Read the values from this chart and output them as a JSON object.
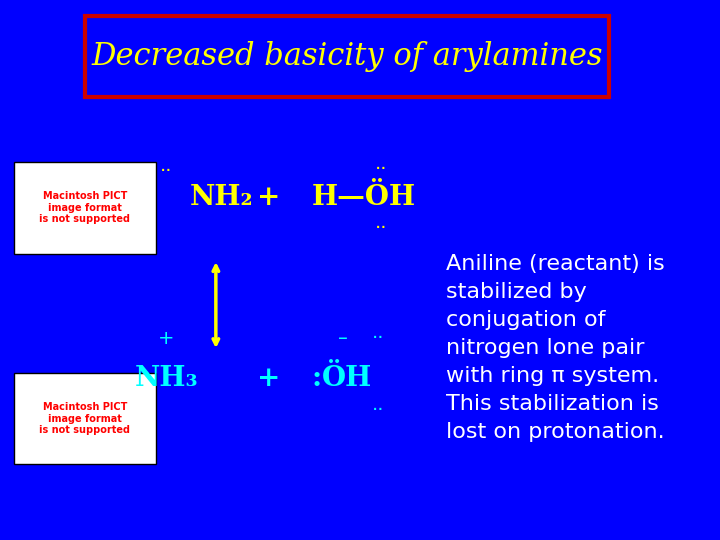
{
  "background_color": "#0000ff",
  "title_text": "Decreased basicity of arylamines",
  "title_color": "#ffff00",
  "title_box_edge_color": "#cc0000",
  "title_fontsize": 22,
  "top_reaction": {
    "nh2_text": "¨NH₂",
    "plus1": "+",
    "water_text": "H—ÖH",
    "water_dots": "¨",
    "color": "#ffff00"
  },
  "arrow_color": "#ffff00",
  "bottom_reaction": {
    "charge": "+",
    "nh3_text": "¨NH₃",
    "plus2": "+",
    "minus_oh": "– ÖH",
    "color": "#00ffff"
  },
  "description_lines": [
    "Aniline (reactant) is",
    "stabilized by",
    "conjugation of",
    "nitrogen lone pair",
    "with ring π system.",
    "This stabilization is",
    "lost on protonation."
  ],
  "desc_color": "#ffffff",
  "desc_fontsize": 16,
  "pict_box_color": "#ffffff",
  "pict_text_color": "#ff0000",
  "pict_text": "Macintosh PICT\nimage format\nis not supported"
}
